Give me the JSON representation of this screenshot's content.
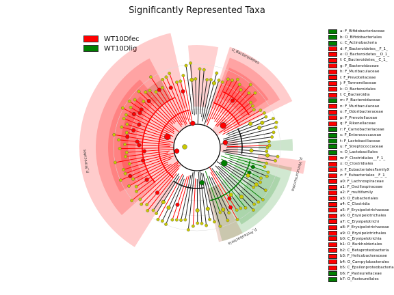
{
  "title": "Significantly Represented Taxa",
  "groups": [
    {
      "name": "WT10Dfec",
      "color": "#ff0000"
    },
    {
      "name": "WT10Dlig",
      "color": "#007f00"
    }
  ],
  "chart_data": {
    "type": "cladogram",
    "title": "Significantly Represented Taxa",
    "series": [
      {
        "name": "WT10Dfec",
        "color": "#ff0000"
      },
      {
        "name": "WT10Dlig",
        "color": "#007f00"
      }
    ],
    "taxa": [
      {
        "label": "a: F_Bifidobacteriaceae",
        "group": "WT10Dlig"
      },
      {
        "label": "b: O_Bifidobacteriales",
        "group": "WT10Dlig"
      },
      {
        "label": "c: C_Actinobacteria",
        "group": "WT10Dlig"
      },
      {
        "label": "d: F_Bacteroidetes__F_1_",
        "group": "WT10Dfec"
      },
      {
        "label": "e: O_Bacteroidetes__O_1_",
        "group": "WT10Dfec"
      },
      {
        "label": "f: C_Bacteroidetes__C_1_",
        "group": "WT10Dfec"
      },
      {
        "label": "g: F_Bacteroidaceae",
        "group": "WT10Dfec"
      },
      {
        "label": "h: F_Muribaculaceae",
        "group": "WT10Dfec"
      },
      {
        "label": "i: F_Prevotellaceae",
        "group": "WT10Dfec"
      },
      {
        "label": "j: F_Tannerellaceae",
        "group": "WT10Dfec"
      },
      {
        "label": "k: O_Bacteroidales",
        "group": "WT10Dfec"
      },
      {
        "label": "l: C_Bacteroidia",
        "group": "WT10Dfec"
      },
      {
        "label": "m: F_Bacteroidaceae",
        "group": "WT10Dlig"
      },
      {
        "label": "n: F_Muribaculaceae",
        "group": "WT10Dfec"
      },
      {
        "label": "o: F_Odoribacteraceae",
        "group": "WT10Dfec"
      },
      {
        "label": "p: F_Prevotellaceae",
        "group": "WT10Dfec"
      },
      {
        "label": "q: F_Rikenellaceae",
        "group": "WT10Dfec"
      },
      {
        "label": "r: F_Carnobacteriaceae",
        "group": "WT10Dlig"
      },
      {
        "label": "s: F_Enterococcaceae",
        "group": "WT10Dlig"
      },
      {
        "label": "t: F_Lactobacillaceae",
        "group": "WT10Dlig"
      },
      {
        "label": "u: F_Streptococcaceae",
        "group": "WT10Dlig"
      },
      {
        "label": "v: O_Lactobacillales",
        "group": "WT10Dlig"
      },
      {
        "label": "w: F_Clostridiales__F_1_",
        "group": "WT10Dfec"
      },
      {
        "label": "x: O_Clostridiales",
        "group": "WT10Dfec"
      },
      {
        "label": "y: F_EubacterialesFamilyX",
        "group": "WT10Dfec"
      },
      {
        "label": "z: F_Eubacteriales__F_1_",
        "group": "WT10Dfec"
      },
      {
        "label": "a0: F_Lachnospiraceae",
        "group": "WT10Dfec"
      },
      {
        "label": "a1: F_Oscillospiraceae",
        "group": "WT10Dfec"
      },
      {
        "label": "a2: F_multifamily",
        "group": "WT10Dfec"
      },
      {
        "label": "a3: O_Eubacteriales",
        "group": "WT10Dfec"
      },
      {
        "label": "a4: C_Clostridia",
        "group": "WT10Dfec"
      },
      {
        "label": "a5: F_Erysipelotrichaceae",
        "group": "WT10Dfec"
      },
      {
        "label": "a6: O_Erysipelotrichales",
        "group": "WT10Dfec"
      },
      {
        "label": "a7: C_Erysipelotrichi",
        "group": "WT10Dfec"
      },
      {
        "label": "a8: F_Erysipelotrichaceae",
        "group": "WT10Dfec"
      },
      {
        "label": "a9: O_Erysipelotrichales",
        "group": "WT10Dfec"
      },
      {
        "label": "b0: C_Erysipelotrichia",
        "group": "WT10Dfec"
      },
      {
        "label": "b1: O_Burkholderiales",
        "group": "WT10Dfec"
      },
      {
        "label": "b2: C_Betaproteobacteria",
        "group": "WT10Dfec"
      },
      {
        "label": "b3: F_Helicobacteraceae",
        "group": "WT10Dfec"
      },
      {
        "label": "b4: O_Campylobacterales",
        "group": "WT10Dfec"
      },
      {
        "label": "b5: C_Epsilonproteobacteria",
        "group": "WT10Dfec"
      },
      {
        "label": "b6: F_Pasteurellaceae",
        "group": "WT10Dlig"
      },
      {
        "label": "b7: O_Pasteurellales",
        "group": "WT10Dlig"
      }
    ],
    "clade_labels": [
      {
        "text": "p_Bacteroidetes",
        "group": "WT10Dfec"
      },
      {
        "text": "p_Verrucomicrobia",
        "group": "WT10Dlig"
      },
      {
        "text": "p_Proteobacteria",
        "group": "WT10Dlig"
      },
      {
        "text": "p_Firmicutes",
        "group": "WT10Dfec"
      }
    ]
  }
}
